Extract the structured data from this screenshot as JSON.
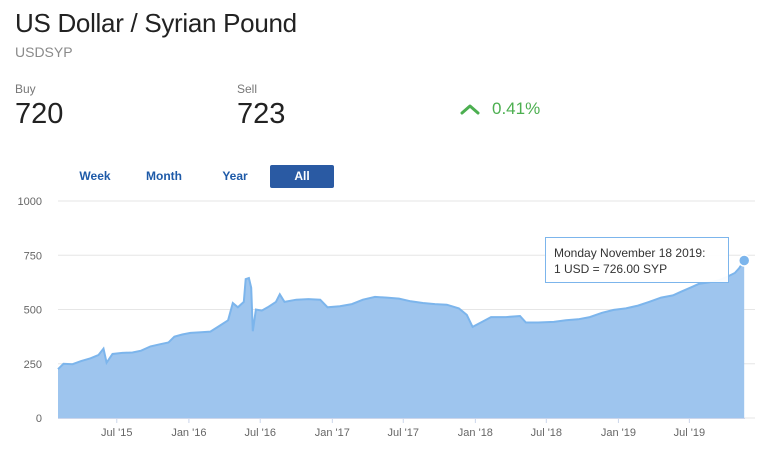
{
  "header": {
    "title": "US Dollar / Syrian Pound",
    "symbol": "USDSYP"
  },
  "quote": {
    "buy_label": "Buy",
    "buy_value": "720",
    "sell_label": "Sell",
    "sell_value": "723",
    "change": "0.41%",
    "change_direction": "up",
    "change_icon": "chevron-up-icon",
    "change_color": "#4caf50"
  },
  "range_tabs": {
    "week": "Week",
    "month": "Month",
    "year": "Year",
    "all": "All",
    "active": "All"
  },
  "tooltip": {
    "line1": "Monday November 18 2019:",
    "line2": "1 USD = 726.00 SYP"
  },
  "chart_data": {
    "type": "area",
    "title": "",
    "xlabel": "",
    "ylabel": "",
    "ylim": [
      0,
      1000
    ],
    "yticks": [
      0,
      250,
      500,
      750,
      1000
    ],
    "xlim": [
      "2015-02-01",
      "2019-11-20"
    ],
    "xticks": [
      {
        "date": "2015-07-01",
        "label": "Jul '15"
      },
      {
        "date": "2016-01-01",
        "label": "Jan '16"
      },
      {
        "date": "2016-07-01",
        "label": "Jul '16"
      },
      {
        "date": "2017-01-01",
        "label": "Jan '17"
      },
      {
        "date": "2017-07-01",
        "label": "Jul '17"
      },
      {
        "date": "2018-01-01",
        "label": "Jan '18"
      },
      {
        "date": "2018-07-01",
        "label": "Jul '18"
      },
      {
        "date": "2019-01-01",
        "label": "Jan '19"
      },
      {
        "date": "2019-07-01",
        "label": "Jul '19"
      }
    ],
    "grid": true,
    "colors": {
      "line": "#7cb5ec",
      "fill": "#9ec5ee",
      "grid": "#e6e6e6"
    },
    "highlight": {
      "date": "2019-11-18",
      "value": 726
    },
    "series": [
      {
        "points": [
          [
            "2015-02-01",
            225
          ],
          [
            "2015-02-15",
            250
          ],
          [
            "2015-03-10",
            248
          ],
          [
            "2015-04-01",
            262
          ],
          [
            "2015-04-25",
            275
          ],
          [
            "2015-05-15",
            290
          ],
          [
            "2015-05-28",
            320
          ],
          [
            "2015-06-05",
            255
          ],
          [
            "2015-06-20",
            295
          ],
          [
            "2015-07-15",
            300
          ],
          [
            "2015-08-10",
            302
          ],
          [
            "2015-09-01",
            310
          ],
          [
            "2015-09-25",
            330
          ],
          [
            "2015-10-20",
            340
          ],
          [
            "2015-11-10",
            348
          ],
          [
            "2015-11-25",
            375
          ],
          [
            "2015-12-15",
            385
          ],
          [
            "2016-01-05",
            392
          ],
          [
            "2016-02-01",
            395
          ],
          [
            "2016-02-25",
            398
          ],
          [
            "2016-03-15",
            420
          ],
          [
            "2016-04-10",
            450
          ],
          [
            "2016-04-22",
            530
          ],
          [
            "2016-05-05",
            510
          ],
          [
            "2016-05-20",
            535
          ],
          [
            "2016-05-25",
            640
          ],
          [
            "2016-06-02",
            645
          ],
          [
            "2016-06-08",
            600
          ],
          [
            "2016-06-12",
            400
          ],
          [
            "2016-06-20",
            500
          ],
          [
            "2016-07-05",
            495
          ],
          [
            "2016-07-20",
            510
          ],
          [
            "2016-08-10",
            535
          ],
          [
            "2016-08-20",
            570
          ],
          [
            "2016-09-01",
            535
          ],
          [
            "2016-10-01",
            545
          ],
          [
            "2016-11-01",
            548
          ],
          [
            "2016-12-01",
            545
          ],
          [
            "2016-12-20",
            510
          ],
          [
            "2017-01-20",
            515
          ],
          [
            "2017-02-20",
            525
          ],
          [
            "2017-03-20",
            545
          ],
          [
            "2017-04-20",
            558
          ],
          [
            "2017-05-20",
            555
          ],
          [
            "2017-06-20",
            550
          ],
          [
            "2017-07-20",
            538
          ],
          [
            "2017-08-20",
            530
          ],
          [
            "2017-09-20",
            525
          ],
          [
            "2017-10-20",
            522
          ],
          [
            "2017-11-20",
            505
          ],
          [
            "2017-12-10",
            475
          ],
          [
            "2017-12-25",
            420
          ],
          [
            "2018-01-15",
            440
          ],
          [
            "2018-02-10",
            465
          ],
          [
            "2018-03-20",
            465
          ],
          [
            "2018-04-25",
            470
          ],
          [
            "2018-05-10",
            440
          ],
          [
            "2018-06-10",
            440
          ],
          [
            "2018-07-20",
            443
          ],
          [
            "2018-08-20",
            450
          ],
          [
            "2018-09-20",
            455
          ],
          [
            "2018-10-20",
            465
          ],
          [
            "2018-11-20",
            485
          ],
          [
            "2018-12-20",
            498
          ],
          [
            "2019-01-20",
            505
          ],
          [
            "2019-02-20",
            518
          ],
          [
            "2019-03-20",
            535
          ],
          [
            "2019-04-20",
            555
          ],
          [
            "2019-05-20",
            565
          ],
          [
            "2019-06-10",
            582
          ],
          [
            "2019-07-05",
            602
          ],
          [
            "2019-07-25",
            618
          ],
          [
            "2019-08-20",
            625
          ],
          [
            "2019-09-15",
            635
          ],
          [
            "2019-10-05",
            650
          ],
          [
            "2019-10-25",
            668
          ],
          [
            "2019-11-05",
            690
          ],
          [
            "2019-11-18",
            726
          ]
        ]
      }
    ]
  }
}
